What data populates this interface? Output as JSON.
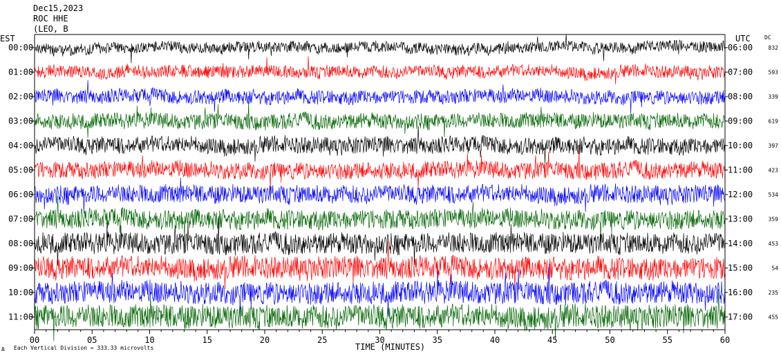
{
  "header": {
    "date": "Dec15,2023",
    "station": "ROC HHE",
    "network": "(LEO, B"
  },
  "labels": {
    "left_tz": "EST",
    "right_tz": "UTC",
    "dc": "DC",
    "xlabel": "TIME (MINUTES)",
    "scale_note": "Each Vertical Division = 333.33 microvolts",
    "corner_mark": "A"
  },
  "colors": [
    "#000000",
    "#ff0000",
    "#0000ff",
    "#006400"
  ],
  "chart_data": {
    "type": "line",
    "xlabel": "TIME (MINUTES)",
    "xlim": [
      0,
      60
    ],
    "x_ticks": [
      "00",
      "05",
      "10",
      "15",
      "20",
      "25",
      "30",
      "35",
      "40",
      "45",
      "50",
      "55",
      "60"
    ],
    "rows": [
      {
        "est": "00:00",
        "utc": "06:00",
        "dc": "832",
        "color": "#000000",
        "amp": 8
      },
      {
        "est": "01:00",
        "utc": "07:00",
        "dc": "593",
        "color": "#ff0000",
        "amp": 9
      },
      {
        "est": "02:00",
        "utc": "08:00",
        "dc": "339",
        "color": "#0000ff",
        "amp": 10
      },
      {
        "est": "03:00",
        "utc": "09:00",
        "dc": "619",
        "color": "#006400",
        "amp": 11
      },
      {
        "est": "04:00",
        "utc": "10:00",
        "dc": "397",
        "color": "#000000",
        "amp": 12
      },
      {
        "est": "05:00",
        "utc": "11:00",
        "dc": "423",
        "color": "#ff0000",
        "amp": 12
      },
      {
        "est": "06:00",
        "utc": "12:00",
        "dc": "534",
        "color": "#0000ff",
        "amp": 13
      },
      {
        "est": "07:00",
        "utc": "13:00",
        "dc": "359",
        "color": "#006400",
        "amp": 14
      },
      {
        "est": "08:00",
        "utc": "14:00",
        "dc": "453",
        "color": "#000000",
        "amp": 15
      },
      {
        "est": "09:00",
        "utc": "15:00",
        "dc": "54",
        "color": "#ff0000",
        "amp": 16
      },
      {
        "est": "10:00",
        "utc": "16:00",
        "dc": "235",
        "color": "#0000ff",
        "amp": 16
      },
      {
        "est": "11:00",
        "utc": "17:00",
        "dc": "455",
        "color": "#006400",
        "amp": 17
      }
    ]
  }
}
